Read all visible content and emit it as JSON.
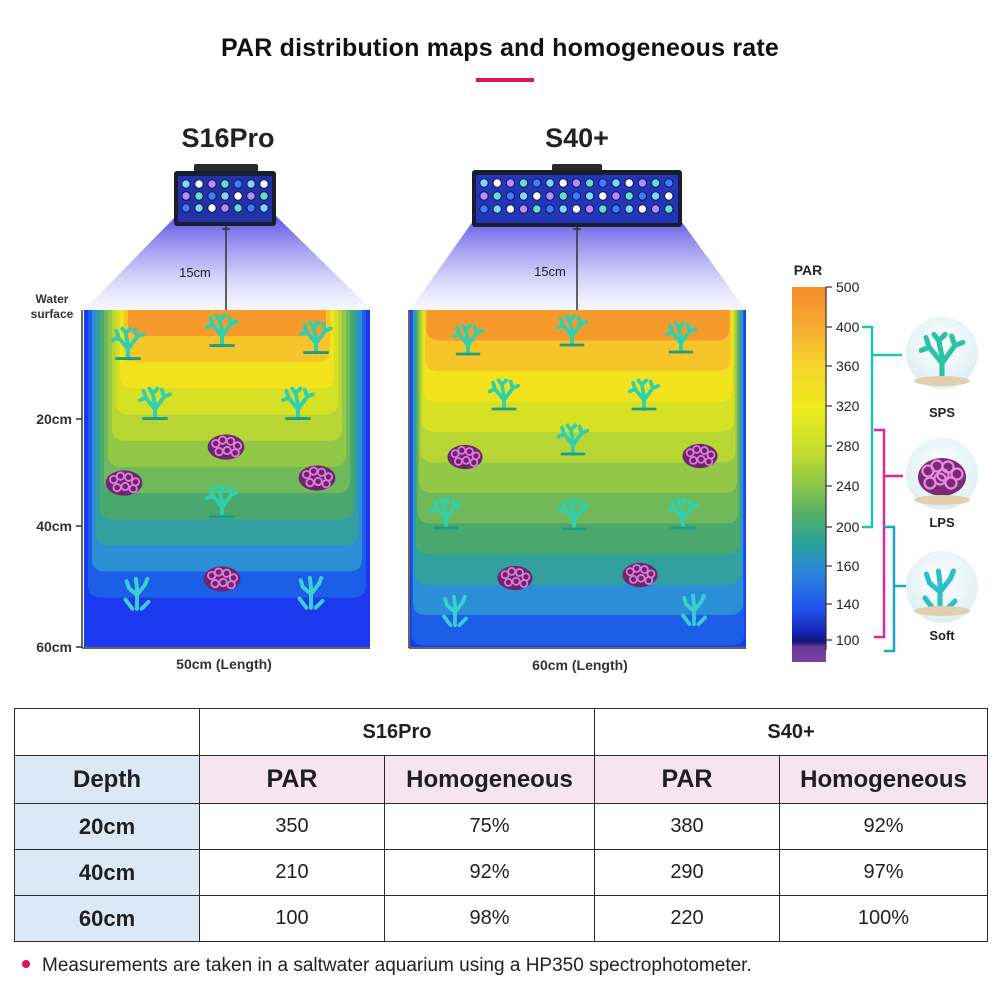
{
  "title": "PAR distribution maps and homogeneous rate",
  "colors": {
    "accent": "#d6155f",
    "purple": "#9a2bb0",
    "depth_blue": "#1f4e79",
    "header_bg": "#f6e4ee",
    "depth_bg": "#dbe8f5",
    "map_bands": [
      "#f79a2c",
      "#f7c42a",
      "#f3e31c",
      "#d7e124",
      "#b7d634",
      "#92c846",
      "#6fb95a",
      "#4aa86e",
      "#33a0a0",
      "#2b8fd6",
      "#1c5ee8",
      "#1b3af0"
    ]
  },
  "chart_data": {
    "type": "heatmap",
    "title": "PAR distribution maps and homogeneous rate",
    "panels": [
      {
        "name": "S16Pro",
        "fixture_height_label": "15cm",
        "x_label": "50cm (Length)",
        "y_tick_labels": [
          "Water surface",
          "20cm",
          "40cm",
          "60cm"
        ],
        "y_ticks_cm": [
          0,
          20,
          40,
          60
        ],
        "fixture_height_cm": 15,
        "tank_length_cm": 50,
        "tank_depth_cm": 60,
        "coral_icons": [
          "SPS",
          "SPS",
          "SPS",
          "SPS",
          "SPS",
          "LPS",
          "LPS",
          "LPS",
          "SPS",
          "LPS",
          "Soft",
          "Soft"
        ]
      },
      {
        "name": "S40+",
        "fixture_height_label": "15cm",
        "x_label": "60cm (Length)",
        "fixture_height_cm": 15,
        "tank_length_cm": 60,
        "tank_depth_cm": 60,
        "coral_icons": [
          "SPS",
          "SPS",
          "SPS",
          "SPS",
          "SPS",
          "LPS",
          "SPS",
          "LPS",
          "SPS",
          "SPS",
          "SPS",
          "LPS",
          "LPS",
          "Soft",
          "Soft"
        ]
      }
    ],
    "colorbar": {
      "label": "PAR",
      "ticks": [
        500,
        400,
        360,
        320,
        280,
        240,
        200,
        160,
        140,
        100
      ]
    },
    "coral_ranges": [
      {
        "name": "SPS",
        "min": 200,
        "max": 400
      },
      {
        "name": "LPS",
        "min": 100,
        "max": 300
      },
      {
        "name": "Soft",
        "min": 100,
        "max": 200
      }
    ],
    "table": {
      "depths": [
        "20cm",
        "40cm",
        "60cm"
      ],
      "series": [
        {
          "name": "S16Pro",
          "par": [
            350,
            210,
            100
          ],
          "homogeneous": [
            "75%",
            "92%",
            "98%"
          ]
        },
        {
          "name": "S40+",
          "par": [
            380,
            290,
            220
          ],
          "homogeneous": [
            "92%",
            "97%",
            "100%"
          ]
        }
      ]
    }
  },
  "table": {
    "depth_header": "Depth",
    "par_header": "PAR",
    "homo_header": "Homogeneous"
  },
  "footnote": "Measurements are taken in a saltwater aquarium using a HP350 spectrophotometer."
}
